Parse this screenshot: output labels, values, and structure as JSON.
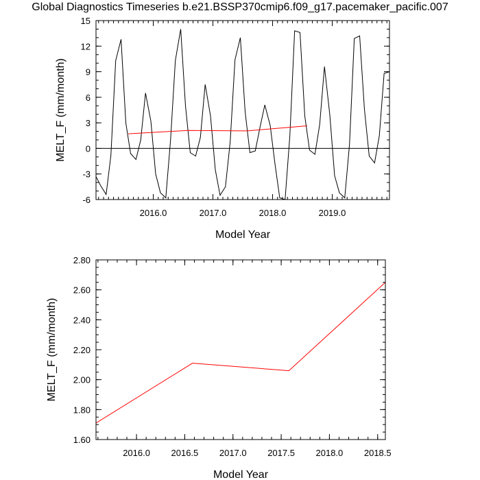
{
  "title": "Global Diagnostics Timeseries b.e21.BSSP370cmip6.f09_g17.pacemaker_pacific.007",
  "chart_data": [
    {
      "type": "line",
      "xlabel": "Model Year",
      "ylabel": "MELT_F (mm/month)",
      "xlim": [
        2015.04,
        2019.96
      ],
      "ylim": [
        -6,
        15
      ],
      "xticks": [
        2016.0,
        2017.0,
        2018.0,
        2019.0
      ],
      "xtick_labels": [
        "2016.0",
        "2017.0",
        "2018.0",
        "2019.0"
      ],
      "yticks": [
        -6,
        -3,
        0,
        3,
        6,
        9,
        12,
        15
      ],
      "ytick_labels": [
        "-6",
        "-3",
        "0",
        "3",
        "6",
        "9",
        "12",
        "15"
      ],
      "reference_line_y": 0,
      "series": [
        {
          "color": "#000000",
          "x": [
            2015.04,
            2015.12,
            2015.21,
            2015.29,
            2015.37,
            2015.46,
            2015.54,
            2015.62,
            2015.71,
            2015.79,
            2015.87,
            2015.96,
            2016.04,
            2016.12,
            2016.21,
            2016.29,
            2016.37,
            2016.46,
            2016.54,
            2016.62,
            2016.71,
            2016.79,
            2016.87,
            2016.96,
            2017.04,
            2017.12,
            2017.21,
            2017.29,
            2017.37,
            2017.46,
            2017.54,
            2017.62,
            2017.71,
            2017.79,
            2017.87,
            2017.96,
            2018.04,
            2018.12,
            2018.21,
            2018.29,
            2018.37,
            2018.46,
            2018.54,
            2018.62,
            2018.71,
            2018.79,
            2018.87,
            2018.96,
            2019.04,
            2019.12,
            2019.21,
            2019.29,
            2019.37,
            2019.46,
            2019.54,
            2019.62,
            2019.71,
            2019.79,
            2019.87,
            2019.96
          ],
          "values": [
            -3.3,
            -4.4,
            -5.4,
            -0.8,
            10.3,
            12.8,
            3.0,
            -0.6,
            -1.3,
            1.0,
            6.5,
            3.2,
            -3.0,
            -5.2,
            -5.8,
            1.0,
            10.3,
            14.0,
            5.0,
            -0.5,
            -0.9,
            1.3,
            7.5,
            3.8,
            -2.5,
            -5.5,
            -4.5,
            0.8,
            10.4,
            13.0,
            4.3,
            -0.5,
            -0.3,
            2.5,
            5.1,
            2.7,
            -1.8,
            -5.8,
            -6.0,
            1.5,
            13.8,
            13.6,
            3.8,
            -0.2,
            -0.7,
            2.8,
            9.6,
            3.9,
            -3.2,
            -5.2,
            -5.8,
            0.5,
            12.9,
            13.2,
            4.6,
            -0.9,
            -1.7,
            1.5,
            8.8,
            9.0
          ]
        },
        {
          "color": "#ff0000",
          "x": [
            2015.58,
            2016.58,
            2017.58,
            2018.58
          ],
          "values": [
            1.71,
            2.11,
            2.06,
            2.65
          ]
        }
      ]
    },
    {
      "type": "line",
      "xlabel": "Model Year",
      "ylabel": "MELT_F (mm/month)",
      "xlim": [
        2015.58,
        2018.58
      ],
      "ylim": [
        1.6,
        2.8
      ],
      "xticks": [
        2016.0,
        2016.5,
        2017.0,
        2017.5,
        2018.0,
        2018.5
      ],
      "xtick_labels": [
        "2016.0",
        "2016.5",
        "2017.0",
        "2017.5",
        "2018.0",
        "2018.5"
      ],
      "yticks": [
        1.6,
        1.8,
        2.0,
        2.2,
        2.4,
        2.6,
        2.8
      ],
      "ytick_labels": [
        "1.60",
        "1.80",
        "2.00",
        "2.20",
        "2.40",
        "2.60",
        "2.80"
      ],
      "series": [
        {
          "color": "#ff0000",
          "x": [
            2015.58,
            2016.58,
            2017.58,
            2018.58
          ],
          "values": [
            1.71,
            2.11,
            2.06,
            2.65
          ]
        }
      ]
    }
  ]
}
